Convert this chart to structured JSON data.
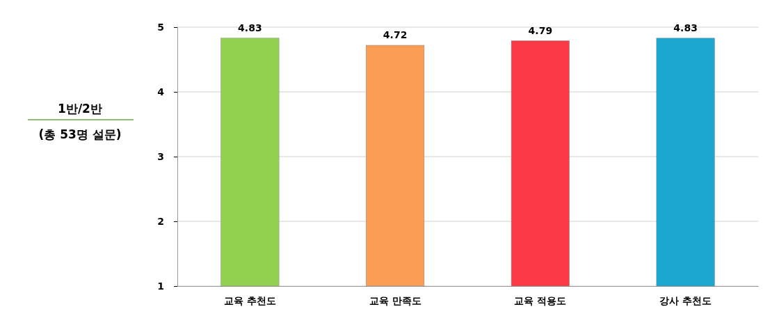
{
  "chart_data": {
    "type": "bar",
    "title": "1반/2반",
    "subtitle": "(총 53명 설문)",
    "categories": [
      "교육 추천도",
      "교육 만족도",
      "교육 적용도",
      "강사 추천도"
    ],
    "values": [
      4.83,
      4.72,
      4.79,
      4.83
    ],
    "colors": [
      "#92d050",
      "#fb9c55",
      "#fb3a45",
      "#1aa7cf"
    ],
    "ylim": [
      1,
      5
    ],
    "yticks": [
      1,
      2,
      3,
      4,
      5
    ],
    "grid": "y",
    "data_labels": true
  }
}
